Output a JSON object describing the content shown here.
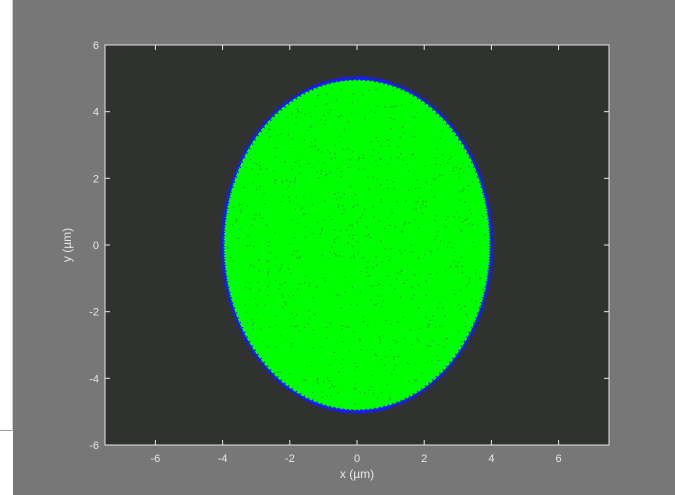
{
  "colors": {
    "figure_background": "#777777",
    "plot_background": "#2f322f",
    "axis_color": "#e6e6e6",
    "fill_series": "#00ff00",
    "boundary_series": "#1a1aff"
  },
  "chart_data": {
    "type": "scatter",
    "title": "",
    "xlabel": "x (µm)",
    "ylabel": "y (µm)",
    "xlim": [
      -7.5,
      7.5
    ],
    "ylim": [
      -6,
      6
    ],
    "x_ticks": [
      -6,
      -4,
      -2,
      0,
      2,
      4,
      6
    ],
    "y_ticks": [
      -6,
      -4,
      -2,
      0,
      2,
      4,
      6
    ],
    "grid": false,
    "legend": "none",
    "series": [
      {
        "marker": "dense dots filling an ellipse",
        "color": "#00ff00",
        "center": [
          0,
          0
        ],
        "x_radius": 4,
        "y_radius": 5
      },
      {
        "marker": "x markers along the ellipse boundary",
        "color": "#1a1aff",
        "center": [
          0,
          0
        ],
        "x_radius": 4,
        "y_radius": 5
      }
    ]
  }
}
